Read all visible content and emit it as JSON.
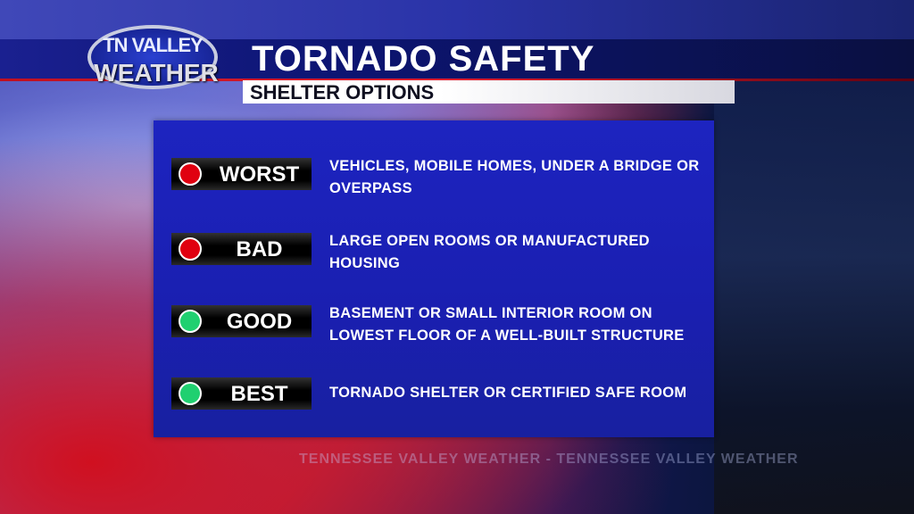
{
  "logo": {
    "line1": "TN VALLEY",
    "line2": "WEATHER"
  },
  "header": {
    "title": "TORNADO SAFETY",
    "subtitle": "SHELTER OPTIONS"
  },
  "options": [
    {
      "rating": "WORST",
      "status": "red",
      "color": "#e00010",
      "description": "VEHICLES, MOBILE HOMES, UNDER A BRIDGE OR OVERPASS"
    },
    {
      "rating": "BAD",
      "status": "red",
      "color": "#e00010",
      "description": "LARGE OPEN ROOMS OR MANUFACTURED HOUSING"
    },
    {
      "rating": "GOOD",
      "status": "green",
      "color": "#20d070",
      "description": "BASEMENT OR SMALL INTERIOR ROOM ON LOWEST FLOOR OF A WELL-BUILT STRUCTURE"
    },
    {
      "rating": "BEST",
      "status": "green",
      "color": "#20d070",
      "description": "TORNADO SHELTER OR CERTIFIED SAFE ROOM"
    }
  ],
  "watermark": "TENNESSEE VALLEY WEATHER - TENNESSEE VALLEY WEATHER"
}
